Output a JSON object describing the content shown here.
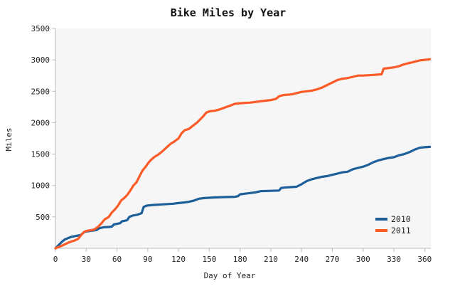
{
  "chart_data": {
    "type": "line",
    "title": "Bike Miles by Year",
    "xlabel": "Day of Year",
    "ylabel": "Miles",
    "xlim": [
      0,
      366
    ],
    "ylim": [
      0,
      3500
    ],
    "xticks": [
      0,
      30,
      60,
      90,
      120,
      150,
      180,
      210,
      240,
      270,
      300,
      330,
      360
    ],
    "yticks": [
      500,
      1000,
      1500,
      2000,
      2500,
      3000,
      3500
    ],
    "grid": false,
    "legend_position": "bottom-right",
    "colors": {
      "plot_background": "#f6f6f6",
      "axis": "#bbbbbb"
    },
    "series": [
      {
        "name": "2010",
        "color": "#1f5f99",
        "points": [
          [
            0,
            0
          ],
          [
            3,
            50
          ],
          [
            6,
            100
          ],
          [
            9,
            140
          ],
          [
            12,
            160
          ],
          [
            15,
            180
          ],
          [
            18,
            190
          ],
          [
            21,
            200
          ],
          [
            25,
            215
          ],
          [
            28,
            260
          ],
          [
            31,
            270
          ],
          [
            35,
            280
          ],
          [
            40,
            290
          ],
          [
            43,
            320
          ],
          [
            47,
            335
          ],
          [
            52,
            340
          ],
          [
            55,
            345
          ],
          [
            57,
            380
          ],
          [
            60,
            390
          ],
          [
            63,
            400
          ],
          [
            65,
            430
          ],
          [
            68,
            440
          ],
          [
            70,
            450
          ],
          [
            72,
            500
          ],
          [
            75,
            520
          ],
          [
            80,
            535
          ],
          [
            84,
            560
          ],
          [
            86,
            660
          ],
          [
            89,
            680
          ],
          [
            95,
            690
          ],
          [
            105,
            700
          ],
          [
            115,
            710
          ],
          [
            120,
            720
          ],
          [
            125,
            730
          ],
          [
            130,
            740
          ],
          [
            135,
            760
          ],
          [
            140,
            790
          ],
          [
            145,
            800
          ],
          [
            155,
            810
          ],
          [
            165,
            815
          ],
          [
            175,
            820
          ],
          [
            178,
            830
          ],
          [
            180,
            860
          ],
          [
            185,
            870
          ],
          [
            190,
            880
          ],
          [
            195,
            890
          ],
          [
            200,
            910
          ],
          [
            210,
            915
          ],
          [
            218,
            920
          ],
          [
            220,
            960
          ],
          [
            225,
            970
          ],
          [
            235,
            980
          ],
          [
            240,
            1020
          ],
          [
            245,
            1070
          ],
          [
            250,
            1100
          ],
          [
            255,
            1120
          ],
          [
            260,
            1140
          ],
          [
            265,
            1150
          ],
          [
            270,
            1170
          ],
          [
            275,
            1190
          ],
          [
            280,
            1210
          ],
          [
            285,
            1220
          ],
          [
            290,
            1260
          ],
          [
            295,
            1280
          ],
          [
            300,
            1300
          ],
          [
            305,
            1330
          ],
          [
            310,
            1370
          ],
          [
            315,
            1400
          ],
          [
            320,
            1420
          ],
          [
            325,
            1440
          ],
          [
            330,
            1450
          ],
          [
            335,
            1480
          ],
          [
            340,
            1500
          ],
          [
            345,
            1530
          ],
          [
            350,
            1570
          ],
          [
            355,
            1600
          ],
          [
            360,
            1610
          ],
          [
            365,
            1615
          ]
        ]
      },
      {
        "name": "2011",
        "color": "#fc5b27",
        "points": [
          [
            0,
            0
          ],
          [
            3,
            20
          ],
          [
            6,
            40
          ],
          [
            10,
            70
          ],
          [
            14,
            100
          ],
          [
            18,
            120
          ],
          [
            22,
            150
          ],
          [
            25,
            210
          ],
          [
            28,
            260
          ],
          [
            31,
            280
          ],
          [
            35,
            290
          ],
          [
            38,
            300
          ],
          [
            42,
            350
          ],
          [
            45,
            400
          ],
          [
            48,
            460
          ],
          [
            52,
            500
          ],
          [
            55,
            570
          ],
          [
            58,
            620
          ],
          [
            61,
            680
          ],
          [
            64,
            760
          ],
          [
            67,
            800
          ],
          [
            70,
            850
          ],
          [
            73,
            920
          ],
          [
            76,
            1000
          ],
          [
            79,
            1050
          ],
          [
            82,
            1150
          ],
          [
            85,
            1240
          ],
          [
            88,
            1300
          ],
          [
            91,
            1370
          ],
          [
            94,
            1420
          ],
          [
            97,
            1460
          ],
          [
            100,
            1490
          ],
          [
            104,
            1540
          ],
          [
            108,
            1600
          ],
          [
            112,
            1660
          ],
          [
            116,
            1700
          ],
          [
            120,
            1750
          ],
          [
            123,
            1830
          ],
          [
            126,
            1880
          ],
          [
            130,
            1900
          ],
          [
            134,
            1950
          ],
          [
            138,
            2000
          ],
          [
            141,
            2050
          ],
          [
            144,
            2100
          ],
          [
            147,
            2160
          ],
          [
            150,
            2180
          ],
          [
            155,
            2190
          ],
          [
            160,
            2210
          ],
          [
            165,
            2240
          ],
          [
            170,
            2270
          ],
          [
            175,
            2300
          ],
          [
            180,
            2310
          ],
          [
            190,
            2320
          ],
          [
            200,
            2340
          ],
          [
            210,
            2360
          ],
          [
            215,
            2380
          ],
          [
            218,
            2420
          ],
          [
            222,
            2440
          ],
          [
            230,
            2450
          ],
          [
            235,
            2470
          ],
          [
            240,
            2490
          ],
          [
            245,
            2500
          ],
          [
            250,
            2510
          ],
          [
            255,
            2530
          ],
          [
            260,
            2560
          ],
          [
            265,
            2600
          ],
          [
            270,
            2640
          ],
          [
            275,
            2680
          ],
          [
            280,
            2700
          ],
          [
            285,
            2710
          ],
          [
            290,
            2730
          ],
          [
            295,
            2750
          ],
          [
            300,
            2750
          ],
          [
            310,
            2760
          ],
          [
            318,
            2770
          ],
          [
            320,
            2860
          ],
          [
            325,
            2870
          ],
          [
            330,
            2880
          ],
          [
            335,
            2900
          ],
          [
            340,
            2930
          ],
          [
            345,
            2950
          ],
          [
            350,
            2970
          ],
          [
            355,
            2990
          ],
          [
            360,
            3000
          ],
          [
            365,
            3010
          ]
        ]
      }
    ]
  }
}
